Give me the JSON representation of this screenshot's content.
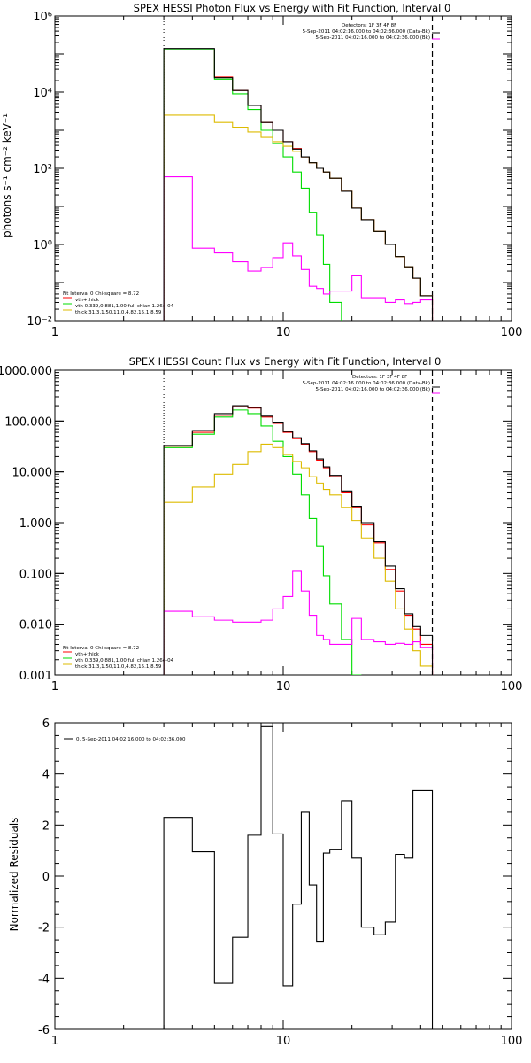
{
  "colors": {
    "total": "#000000",
    "data": "#000000",
    "sum": "#ff0000",
    "vth": "#00dd00",
    "thick": "#ddbb00",
    "bk": "#ff00ff",
    "range": "#000000"
  },
  "legend": {
    "detectors": "Detectors: 1F 3F 4F 8F",
    "data_label": "5-Sep-2011 04:02:16.000 to 04:02:36.000 (Data-Bk)",
    "bk_label": "5-Sep-2011 04:02:16.000 to 04:02:36.000 (Bk)",
    "fit_interval": "Fit Interval 0   Chi-square = 8.72",
    "sum_label": "vth+thick",
    "vth_label": "vth 0.339,0.881,1.00  full chian 1.26e-04",
    "thick_label": "thick 31.3,1.50,11.0,4.82,15.1,8.59",
    "resid_label": "0. 5-Sep-2011 04:02:16.000 to 04:02:36.000"
  },
  "chart_data": [
    {
      "type": "line",
      "title": "SPEX HESSI Photon Flux vs Energy with Fit Function, Interval 0",
      "ylabel": "photons s⁻¹ cm⁻² keV⁻¹",
      "xlabel": "",
      "xlog": true,
      "ylog": true,
      "xlim": [
        1,
        100
      ],
      "ylim": [
        0.01,
        1000000
      ],
      "xticks": [
        "1",
        "10",
        "100"
      ],
      "yticks": [
        "10⁻²",
        "10⁰",
        "10²",
        "10⁴",
        "10⁶"
      ],
      "fit_range": [
        3,
        45
      ],
      "edges": [
        3,
        4,
        5,
        6,
        7,
        8,
        9,
        10,
        11,
        12,
        13,
        14,
        15,
        16,
        18,
        20,
        22,
        25,
        28,
        31,
        34,
        37,
        40,
        45
      ],
      "series": [
        {
          "name": "vth+thick",
          "key": "sum",
          "values": [
            130000.0,
            130000.0,
            25000.0,
            11000.0,
            4500.0,
            1600.0,
            1000.0,
            500,
            330,
            200,
            140,
            100,
            80,
            55,
            25,
            9,
            4.5,
            2.2,
            1.0,
            0.48,
            0.26,
            0.13,
            0.045
          ]
        },
        {
          "name": "vth",
          "key": "vth",
          "values": [
            130000.0,
            130000.0,
            22000.0,
            9000.0,
            3500.0,
            1000.0,
            450,
            200,
            80,
            30,
            7,
            1.8,
            0.3,
            0.03
          ]
        },
        {
          "name": "thick",
          "key": "thick",
          "values": [
            2500,
            2500,
            1600,
            1200,
            900,
            650,
            500,
            380,
            280,
            200,
            140,
            100,
            80,
            55,
            25,
            9,
            4.5,
            2.2,
            1.0,
            0.48,
            0.26,
            0.13,
            0.045
          ]
        },
        {
          "name": "Bk",
          "key": "bk",
          "values": [
            60,
            0.8,
            0.6,
            0.35,
            0.2,
            0.25,
            0.45,
            1.1,
            0.5,
            0.22,
            0.08,
            0.07,
            0.05,
            0.06,
            0.06,
            0.15,
            0.04,
            0.04,
            0.03,
            0.035,
            0.028,
            0.03,
            0.035
          ]
        },
        {
          "name": "Data-Bk",
          "key": "data",
          "values": [
            140000.0,
            140000.0,
            24000.0,
            11000.0,
            4500.0,
            1600.0,
            1000.0,
            500,
            320,
            200,
            140,
            100,
            80,
            55,
            25,
            9,
            4.5,
            2.2,
            1.0,
            0.48,
            0.26,
            0.13,
            0.045
          ]
        }
      ]
    },
    {
      "type": "line",
      "title": "SPEX HESSI Count Flux vs Energy with Fit Function, Interval 0",
      "ylabel": "",
      "xlabel": "",
      "xlog": true,
      "ylog": true,
      "xlim": [
        1,
        100
      ],
      "ylim": [
        0.001,
        1000
      ],
      "xticks": [
        "1",
        "10",
        "100"
      ],
      "yticks": [
        "0.001",
        "0.010",
        "0.100",
        "1.000",
        "10.000",
        "100.000",
        "1000.000"
      ],
      "fit_range": [
        3,
        45
      ],
      "edges": [
        3,
        4,
        5,
        6,
        7,
        8,
        9,
        10,
        11,
        12,
        13,
        14,
        15,
        16,
        18,
        20,
        22,
        25,
        28,
        31,
        34,
        37,
        40,
        45
      ],
      "series": [
        {
          "name": "vth+thick",
          "key": "sum",
          "values": [
            32,
            60,
            130,
            190,
            180,
            120,
            90,
            60,
            45,
            35,
            25,
            17,
            12,
            8,
            4,
            2,
            0.9,
            0.4,
            0.12,
            0.045,
            0.015,
            0.008,
            0.004
          ]
        },
        {
          "name": "vth",
          "key": "vth",
          "values": [
            30,
            55,
            120,
            165,
            140,
            80,
            40,
            20,
            9,
            3.5,
            1.2,
            0.35,
            0.09,
            0.025,
            0.005,
            0.001
          ]
        },
        {
          "name": "thick",
          "key": "thick",
          "values": [
            2.5,
            5,
            9,
            14,
            25,
            35,
            30,
            22,
            16,
            12,
            8,
            6,
            4.5,
            3.5,
            2,
            1.1,
            0.5,
            0.2,
            0.07,
            0.02,
            0.008,
            0.003,
            0.0015
          ]
        },
        {
          "name": "Bk",
          "key": "bk",
          "values": [
            0.018,
            0.014,
            0.012,
            0.011,
            0.011,
            0.012,
            0.02,
            0.035,
            0.11,
            0.045,
            0.015,
            0.006,
            0.005,
            0.004,
            0.004,
            0.013,
            0.005,
            0.0045,
            0.004,
            0.0042,
            0.004,
            0.0045,
            0.0035
          ]
        },
        {
          "name": "Data-Bk",
          "key": "data",
          "values": [
            33,
            65,
            140,
            200,
            185,
            125,
            95,
            62,
            47,
            36,
            26,
            18,
            12.5,
            8.5,
            4.2,
            2.1,
            1.0,
            0.42,
            0.14,
            0.05,
            0.016,
            0.009,
            0.006
          ]
        }
      ]
    },
    {
      "type": "line",
      "title": "",
      "ylabel": "Normalized Residuals",
      "xlabel": "",
      "xlog": true,
      "ylog": false,
      "xlim": [
        1,
        100
      ],
      "ylim": [
        -6,
        6
      ],
      "xticks": [
        "1",
        "10",
        "100"
      ],
      "yticks": [
        "-6",
        "-4",
        "-2",
        "0",
        "2",
        "4",
        "6"
      ],
      "edges": [
        3,
        4,
        5,
        6,
        7,
        8,
        9,
        10,
        11,
        12,
        13,
        14,
        15,
        16,
        18,
        20,
        22,
        25,
        28,
        31,
        34,
        37,
        40,
        45
      ],
      "series": [
        {
          "name": "0. 5-Sep-2011 04:02:16.000 to 04:02:36.000",
          "key": "data",
          "values": [
            2.3,
            0.95,
            -4.2,
            -2.4,
            1.6,
            5.85,
            1.65,
            -4.3,
            -1.1,
            2.5,
            -0.35,
            -2.55,
            0.9,
            1.05,
            2.95,
            0.7,
            -2.0,
            -2.3,
            -1.8,
            0.85,
            0.7,
            3.35,
            3.35
          ]
        }
      ]
    }
  ]
}
